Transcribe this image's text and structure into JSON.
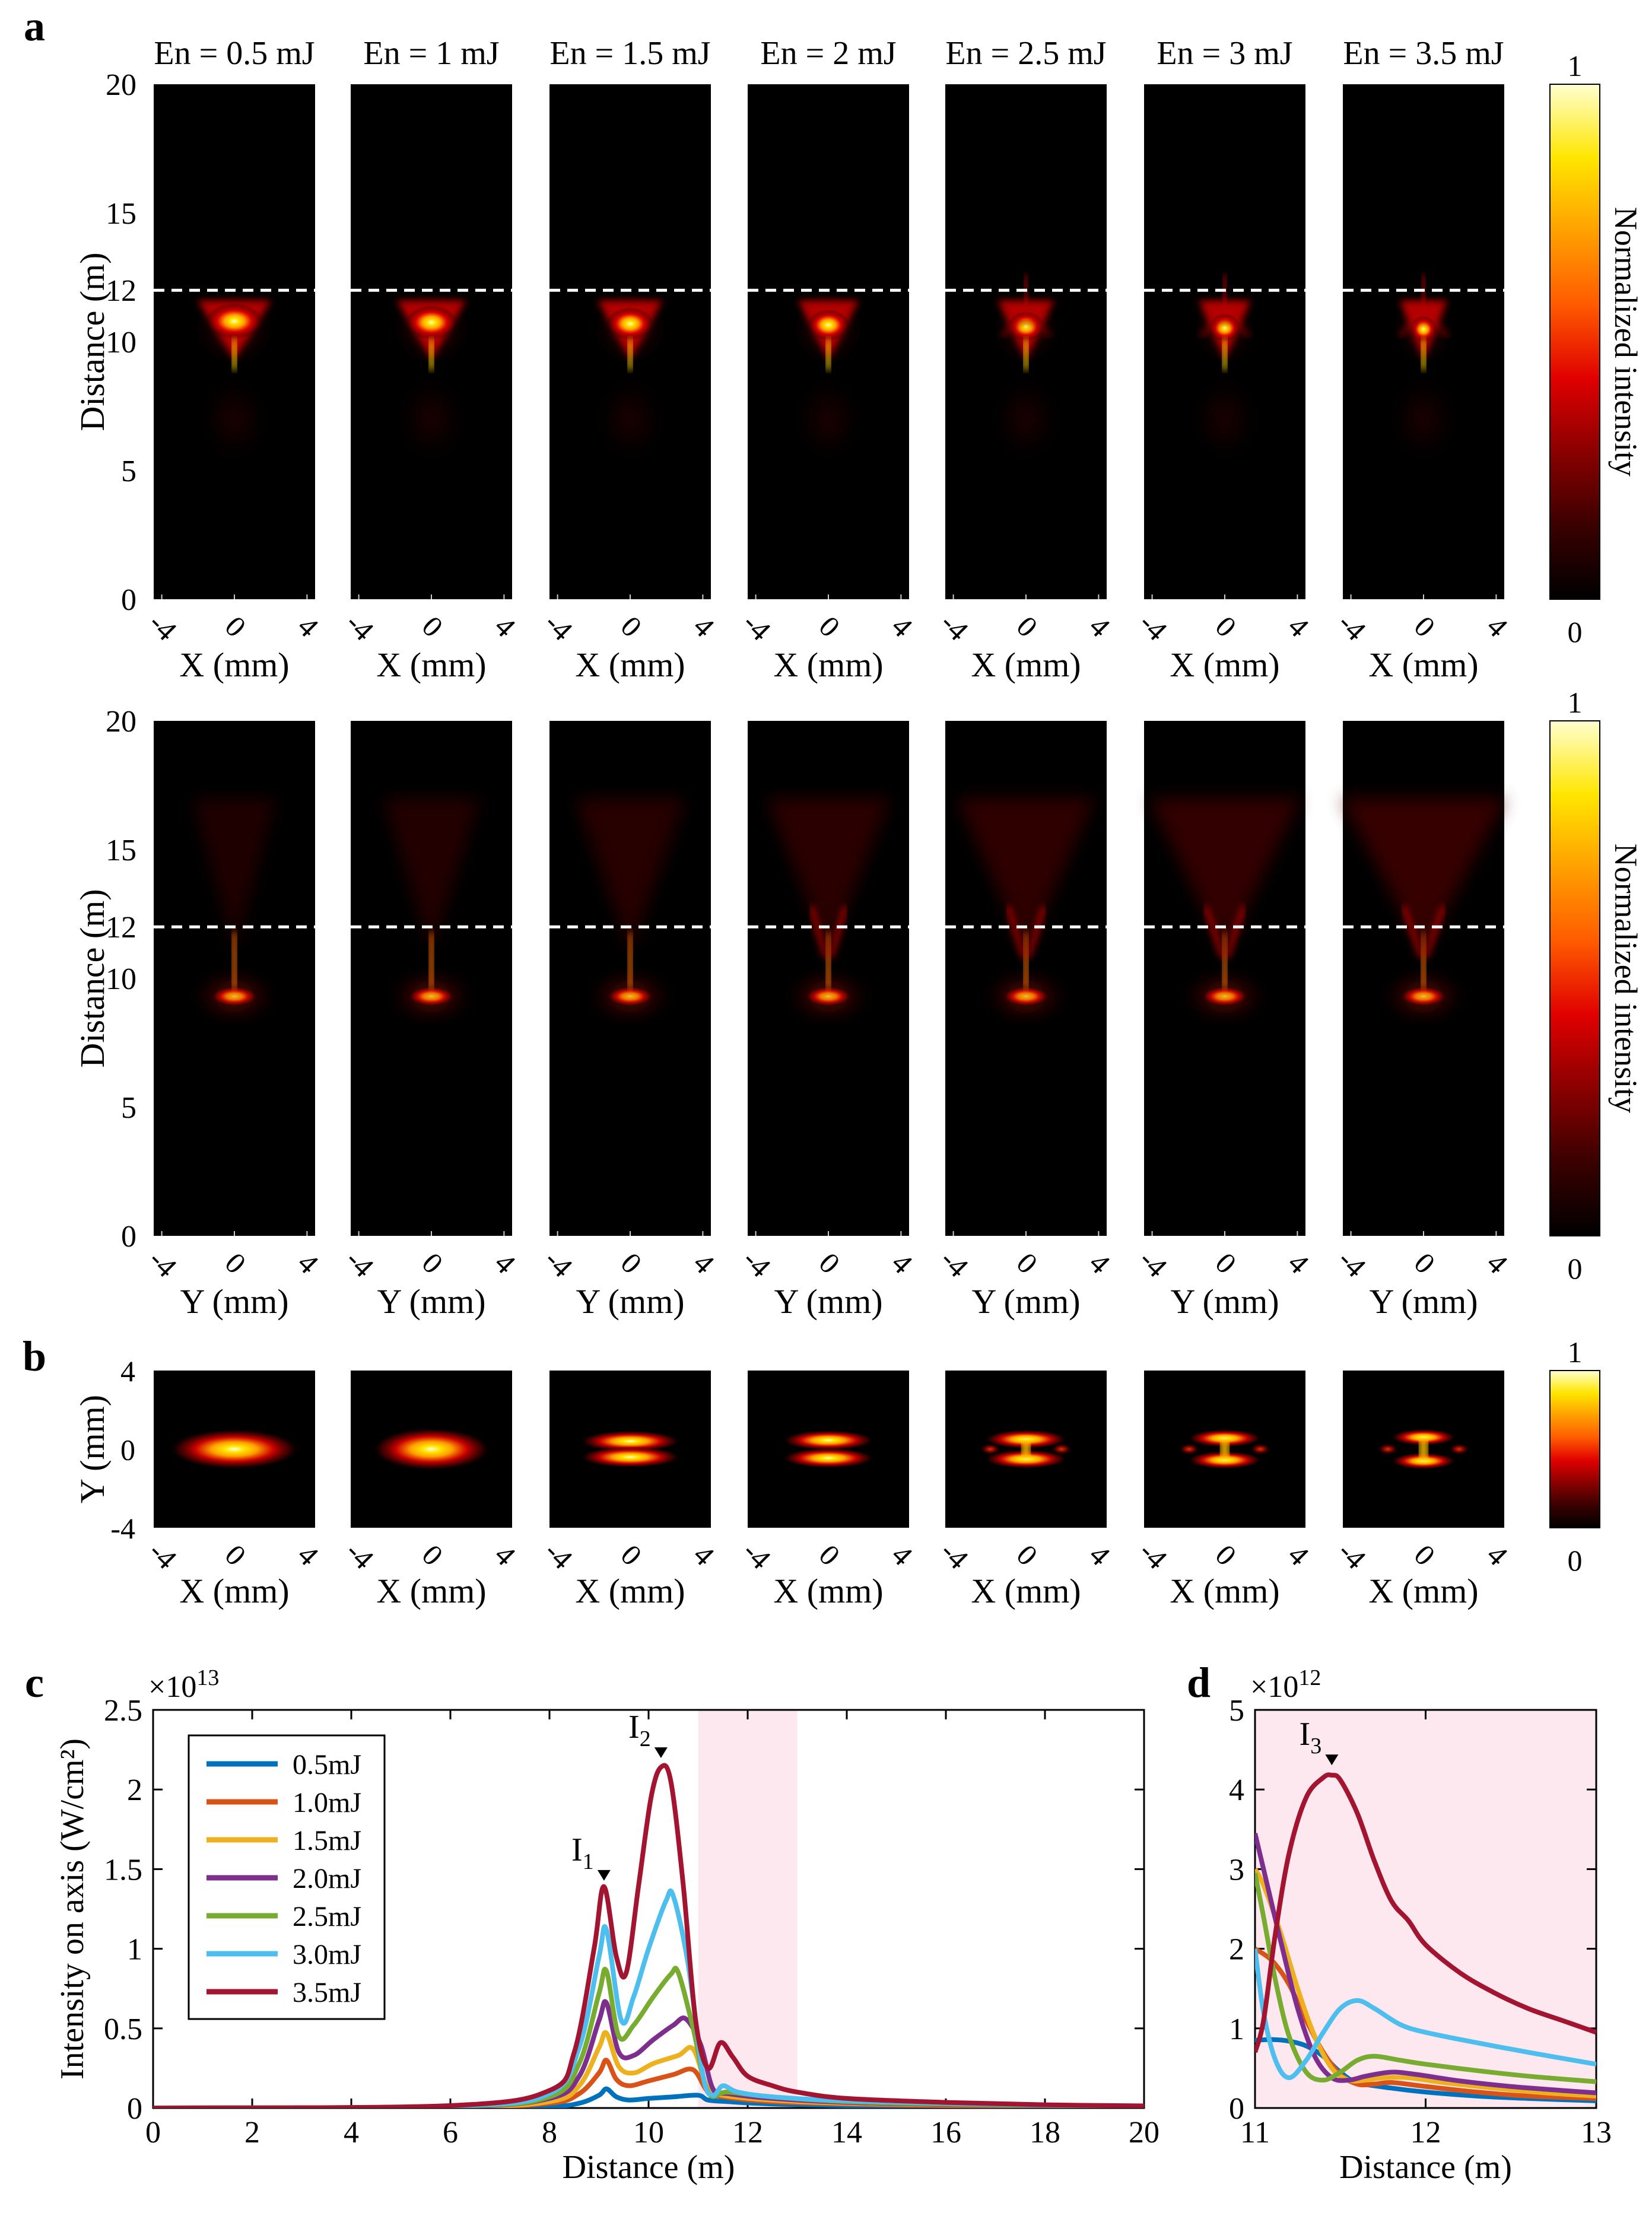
{
  "panel_labels": {
    "a": "a",
    "b": "b",
    "c": "c",
    "d": "d"
  },
  "energies": [
    "En = 0.5 mJ",
    "En = 1 mJ",
    "En = 1.5 mJ",
    "En = 2 mJ",
    "En = 2.5 mJ",
    "En = 3 mJ",
    "En = 3.5 mJ"
  ],
  "colorbar": {
    "label": "Normalized intensity",
    "max": "1",
    "min": "0",
    "colors": [
      "#000000",
      "#3a0000",
      "#8a0000",
      "#e00000",
      "#ff5a00",
      "#ffa000",
      "#ffe600",
      "#ffffd0"
    ]
  },
  "panel_a": {
    "ylabel": "Distance (m)",
    "yticks": [
      "0",
      "5",
      "10",
      "12",
      "15",
      "20"
    ],
    "xticks": [
      "-4",
      "0",
      "4"
    ],
    "xlabel_top": "X (mm)",
    "xlabel_bottom": "Y (mm)",
    "dashed_line_at_m": 12,
    "distance_range_m": [
      0,
      20
    ],
    "transverse_range_mm": [
      -4,
      4
    ]
  },
  "panel_b": {
    "ylabel": "Y (mm)",
    "yticks": [
      "4",
      "0",
      "-4"
    ],
    "xticks": [
      "-4",
      "0",
      "4"
    ],
    "xlabel": "X (mm)",
    "range_mm": [
      -4,
      4
    ]
  },
  "chart_data": [
    {
      "id": "c",
      "type": "line",
      "ylabel": "Intensity on axis (W/cm²)",
      "scale_label": "×10",
      "scale_exp": "13",
      "xlabel": "Distance (m)",
      "xlim": [
        0,
        20
      ],
      "ylim": [
        0,
        2.5
      ],
      "xticks": [
        "0",
        "2",
        "4",
        "6",
        "8",
        "10",
        "12",
        "14",
        "16",
        "18",
        "20"
      ],
      "yticks": [
        "0",
        "0.5",
        "1",
        "1.5",
        "2",
        "2.5"
      ],
      "shaded_region": [
        11,
        13
      ],
      "annotations": [
        {
          "label": "I",
          "sub": "1",
          "x": 9.1,
          "y": 1.45
        },
        {
          "label": "I",
          "sub": "2",
          "x": 10.25,
          "y": 2.22
        }
      ],
      "series": [
        {
          "name": "0.5mJ",
          "color": "#0072BD",
          "x": [
            0,
            6,
            8,
            8.6,
            9.0,
            9.15,
            9.35,
            9.6,
            10.0,
            10.5,
            11.0,
            11.2,
            11.6,
            12.5,
            14,
            16,
            18,
            20
          ],
          "y": [
            0,
            0.002,
            0.01,
            0.03,
            0.08,
            0.12,
            0.07,
            0.05,
            0.06,
            0.07,
            0.08,
            0.05,
            0.04,
            0.025,
            0.015,
            0.01,
            0.006,
            0.004
          ]
        },
        {
          "name": "1.0mJ",
          "color": "#D95319",
          "x": [
            0,
            6,
            8,
            8.6,
            9.0,
            9.15,
            9.35,
            9.6,
            10.0,
            10.5,
            10.9,
            11.2,
            11.5,
            12.5,
            14,
            16,
            18,
            20
          ],
          "y": [
            0,
            0.004,
            0.03,
            0.09,
            0.22,
            0.3,
            0.18,
            0.14,
            0.17,
            0.21,
            0.24,
            0.1,
            0.07,
            0.04,
            0.025,
            0.015,
            0.01,
            0.006
          ]
        },
        {
          "name": "1.5mJ",
          "color": "#EDB120",
          "x": [
            0,
            6,
            8,
            8.6,
            9.0,
            9.15,
            9.4,
            9.7,
            10.1,
            10.6,
            10.9,
            11.2,
            11.5,
            12.5,
            14,
            16,
            18,
            20
          ],
          "y": [
            0,
            0.006,
            0.04,
            0.14,
            0.38,
            0.47,
            0.26,
            0.22,
            0.28,
            0.33,
            0.37,
            0.12,
            0.08,
            0.05,
            0.03,
            0.02,
            0.012,
            0.008
          ]
        },
        {
          "name": "2.0mJ",
          "color": "#7E2F8E",
          "x": [
            0,
            6,
            8,
            8.6,
            9.0,
            9.15,
            9.4,
            9.7,
            10.1,
            10.5,
            10.75,
            11.05,
            11.3,
            11.6,
            12.5,
            14,
            16,
            18,
            20
          ],
          "y": [
            0,
            0.008,
            0.06,
            0.2,
            0.55,
            0.66,
            0.35,
            0.33,
            0.43,
            0.52,
            0.56,
            0.4,
            0.12,
            0.09,
            0.06,
            0.035,
            0.022,
            0.014,
            0.009
          ]
        },
        {
          "name": "2.5mJ",
          "color": "#77AC30",
          "x": [
            0,
            6,
            8,
            8.6,
            9.0,
            9.15,
            9.4,
            9.7,
            10.1,
            10.45,
            10.6,
            10.9,
            11.2,
            11.6,
            12.5,
            14,
            16,
            18,
            20
          ],
          "y": [
            0,
            0.01,
            0.07,
            0.28,
            0.72,
            0.86,
            0.45,
            0.52,
            0.7,
            0.84,
            0.85,
            0.5,
            0.1,
            0.1,
            0.07,
            0.04,
            0.025,
            0.016,
            0.01
          ]
        },
        {
          "name": "3.0mJ",
          "color": "#4DBEEE",
          "x": [
            0,
            6,
            8,
            8.6,
            9.0,
            9.15,
            9.45,
            9.7,
            10.0,
            10.35,
            10.5,
            10.8,
            11.1,
            11.3,
            11.5,
            11.8,
            12.5,
            14,
            16,
            18,
            20
          ],
          "y": [
            0,
            0.012,
            0.09,
            0.38,
            0.95,
            1.12,
            0.55,
            0.7,
            1.0,
            1.3,
            1.33,
            0.9,
            0.2,
            0.08,
            0.14,
            0.1,
            0.07,
            0.045,
            0.03,
            0.018,
            0.012
          ]
        },
        {
          "name": "3.5mJ",
          "color": "#A2142F",
          "x": [
            0,
            6,
            8,
            8.5,
            8.9,
            9.1,
            9.35,
            9.55,
            9.8,
            10.05,
            10.25,
            10.45,
            10.7,
            10.95,
            11.2,
            11.45,
            11.7,
            12.0,
            12.5,
            13,
            14,
            16,
            18,
            20
          ],
          "y": [
            0,
            0.015,
            0.11,
            0.35,
            1.0,
            1.39,
            0.95,
            0.85,
            1.4,
            1.95,
            2.14,
            2.05,
            1.4,
            0.55,
            0.25,
            0.41,
            0.32,
            0.2,
            0.14,
            0.1,
            0.06,
            0.035,
            0.02,
            0.013
          ]
        }
      ]
    },
    {
      "id": "d",
      "type": "line",
      "scale_label": "×10",
      "scale_exp": "12",
      "xlabel": "Distance (m)",
      "xlim": [
        11,
        13
      ],
      "ylim": [
        0,
        5
      ],
      "xticks": [
        "11",
        "12",
        "13"
      ],
      "yticks": [
        "0",
        "1",
        "2",
        "3",
        "4",
        "5"
      ],
      "shaded_region": [
        11,
        13
      ],
      "annotations": [
        {
          "label": "I",
          "sub": "3",
          "x": 11.45,
          "y": 4.35
        }
      ],
      "series": [
        {
          "name": "0.5mJ",
          "color": "#0072BD",
          "x": [
            11,
            11.1,
            11.2,
            11.3,
            11.4,
            11.5,
            11.6,
            11.8,
            12.0,
            12.3,
            12.6,
            13
          ],
          "y": [
            0.85,
            0.86,
            0.84,
            0.78,
            0.65,
            0.45,
            0.32,
            0.25,
            0.2,
            0.15,
            0.12,
            0.09
          ]
        },
        {
          "name": "1.0mJ",
          "color": "#D95319",
          "x": [
            11,
            11.1,
            11.2,
            11.3,
            11.4,
            11.5,
            11.6,
            11.7,
            11.8,
            12.0,
            12.3,
            12.6,
            13
          ],
          "y": [
            2.0,
            1.85,
            1.55,
            1.1,
            0.7,
            0.42,
            0.3,
            0.3,
            0.32,
            0.27,
            0.2,
            0.15,
            0.12
          ]
        },
        {
          "name": "1.5mJ",
          "color": "#EDB120",
          "x": [
            11,
            11.05,
            11.15,
            11.25,
            11.35,
            11.45,
            11.55,
            11.65,
            11.75,
            11.9,
            12.1,
            12.4,
            12.7,
            13
          ],
          "y": [
            3.0,
            2.8,
            2.2,
            1.5,
            0.9,
            0.5,
            0.35,
            0.35,
            0.38,
            0.38,
            0.32,
            0.25,
            0.19,
            0.15
          ]
        },
        {
          "name": "2.0mJ",
          "color": "#7E2F8E",
          "x": [
            11,
            11.05,
            11.15,
            11.25,
            11.35,
            11.45,
            11.55,
            11.65,
            11.8,
            11.95,
            12.2,
            12.5,
            12.8,
            13
          ],
          "y": [
            3.45,
            3.0,
            2.1,
            1.25,
            0.65,
            0.38,
            0.35,
            0.4,
            0.45,
            0.42,
            0.34,
            0.27,
            0.22,
            0.19
          ]
        },
        {
          "name": "2.5mJ",
          "color": "#77AC30",
          "x": [
            11,
            11.05,
            11.12,
            11.2,
            11.3,
            11.4,
            11.5,
            11.6,
            11.7,
            11.85,
            12.0,
            12.3,
            12.6,
            13
          ],
          "y": [
            2.95,
            2.4,
            1.6,
            0.9,
            0.45,
            0.35,
            0.45,
            0.6,
            0.65,
            0.6,
            0.55,
            0.47,
            0.4,
            0.33
          ]
        },
        {
          "name": "3.0mJ",
          "color": "#4DBEEE",
          "x": [
            11,
            11.05,
            11.12,
            11.2,
            11.3,
            11.4,
            11.5,
            11.6,
            11.7,
            11.85,
            12.0,
            12.3,
            12.6,
            13
          ],
          "y": [
            2.0,
            1.2,
            0.6,
            0.38,
            0.6,
            0.95,
            1.25,
            1.35,
            1.25,
            1.05,
            0.95,
            0.82,
            0.7,
            0.55
          ]
        },
        {
          "name": "3.5mJ",
          "color": "#A2142F",
          "x": [
            11,
            11.05,
            11.12,
            11.2,
            11.3,
            11.4,
            11.45,
            11.5,
            11.6,
            11.7,
            11.8,
            11.9,
            12.0,
            12.2,
            12.4,
            12.6,
            12.8,
            13
          ],
          "y": [
            0.7,
            1.1,
            2.2,
            3.2,
            3.9,
            4.15,
            4.18,
            4.12,
            3.7,
            3.1,
            2.6,
            2.35,
            2.05,
            1.7,
            1.45,
            1.25,
            1.1,
            0.95
          ]
        }
      ]
    }
  ]
}
